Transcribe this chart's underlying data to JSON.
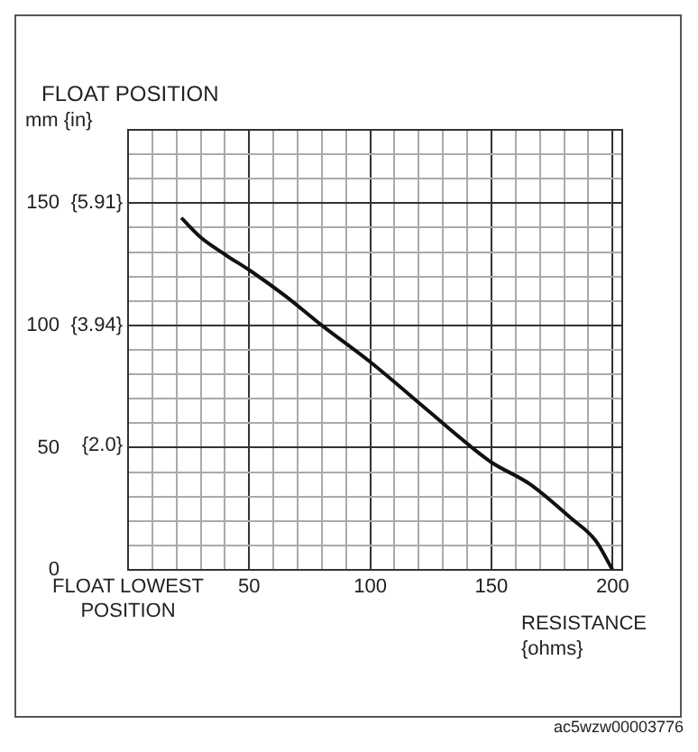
{
  "chart_data": {
    "type": "line",
    "title": "FLOAT POSITION",
    "ylabel": "mm {in}",
    "xlabel": "RESISTANCE {ohms}",
    "annotations": [
      "ac5wzw00003776"
    ],
    "x": [
      22,
      30,
      40,
      51,
      65,
      80,
      100,
      124,
      142,
      150,
      166,
      183,
      193,
      200
    ],
    "series": [
      {
        "color": "#111111",
        "values": [
          144,
          136,
          129,
          122,
          112,
          100,
          85,
          65,
          50,
          44,
          35,
          21,
          12,
          0
        ]
      }
    ],
    "marker": "none",
    "grid": true,
    "xlim": [
      0,
      204
    ],
    "ylim": [
      0,
      180
    ],
    "y2lim": [
      0,
      7.09
    ],
    "y2ticks": [
      {
        "value": 2.0,
        "label": "{2.0}"
      },
      {
        "value": 3.94,
        "label": "{3.94}"
      },
      {
        "value": 5.91,
        "label": "{5.91}"
      }
    ],
    "xticks": [
      {
        "value": 0,
        "label": "FLOAT LOWEST POSITION"
      },
      {
        "value": 10,
        "label": null
      },
      {
        "value": 20,
        "label": null
      },
      {
        "value": 30,
        "label": null
      },
      {
        "value": 40,
        "label": null
      },
      50,
      {
        "value": 60,
        "label": null
      },
      {
        "value": 70,
        "label": null
      },
      {
        "value": 80,
        "label": null
      },
      {
        "value": 90,
        "label": null
      },
      100,
      {
        "value": 110,
        "label": null
      },
      {
        "value": 120,
        "label": null
      },
      {
        "value": 130,
        "label": null
      },
      {
        "value": 140,
        "label": null
      },
      150,
      {
        "value": 160,
        "label": null
      },
      {
        "value": 170,
        "label": null
      },
      {
        "value": 180,
        "label": null
      },
      {
        "value": 190,
        "label": null
      },
      200
    ],
    "yticks": [
      0,
      {
        "value": 10,
        "label": null
      },
      {
        "value": 20,
        "label": null
      },
      {
        "value": 30,
        "label": null
      },
      {
        "value": 40,
        "label": null
      },
      50,
      {
        "value": 60,
        "label": null
      },
      {
        "value": 70,
        "label": null
      },
      {
        "value": 80,
        "label": null
      },
      {
        "value": 90,
        "label": null
      },
      100,
      {
        "value": 110,
        "label": null
      },
      {
        "value": 120,
        "label": null
      },
      {
        "value": 130,
        "label": null
      },
      {
        "value": 140,
        "label": null
      },
      150,
      {
        "value": 160,
        "label": null
      },
      {
        "value": 170,
        "label": null
      }
    ]
  }
}
